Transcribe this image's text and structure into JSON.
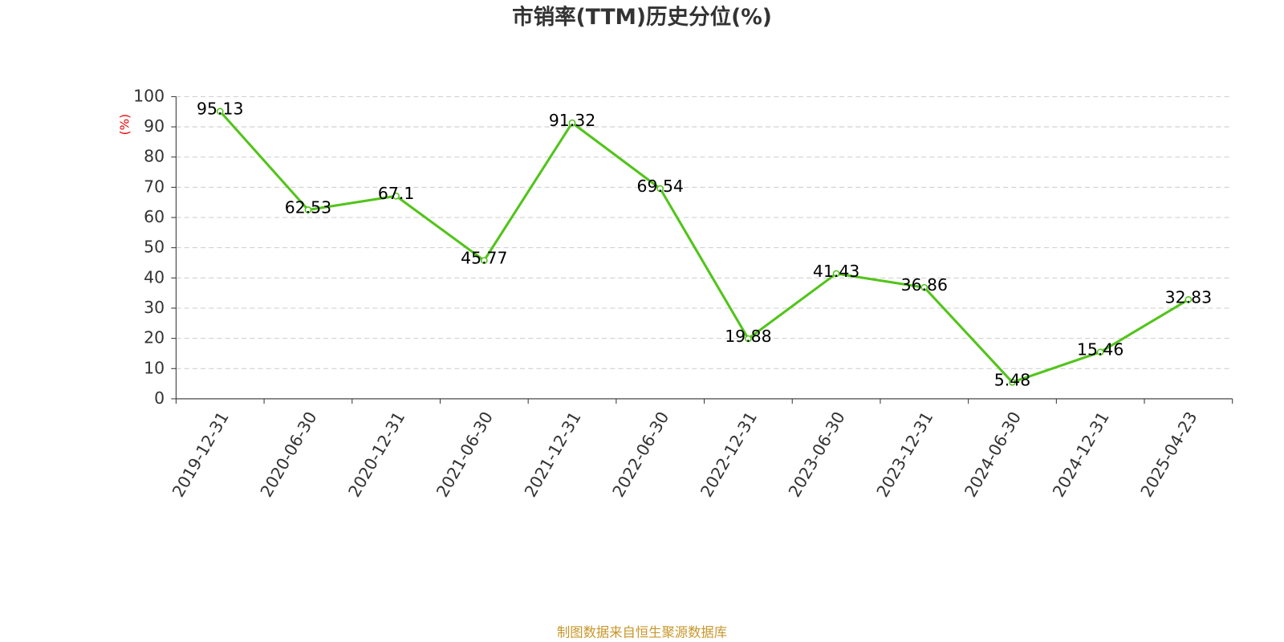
{
  "chart_data": {
    "type": "line",
    "title": "市销率(TTM)历史分位(%)",
    "y_label": "(%)",
    "source": "制图数据来自恒生聚源数据库",
    "categories": [
      "2019-12-31",
      "2020-06-30",
      "2020-12-31",
      "2021-06-30",
      "2021-12-31",
      "2022-06-30",
      "2022-12-31",
      "2023-06-30",
      "2023-12-31",
      "2024-06-30",
      "2024-12-31",
      "2025-04-23"
    ],
    "values": [
      95.13,
      62.53,
      67.1,
      45.77,
      91.32,
      69.54,
      19.88,
      41.43,
      36.86,
      5.48,
      15.46,
      32.83
    ],
    "color": "#52c41a",
    "ylim": [
      0,
      100
    ],
    "yticks": [
      0,
      10,
      20,
      30,
      40,
      50,
      60,
      70,
      80,
      90,
      100
    ],
    "grid": true
  }
}
